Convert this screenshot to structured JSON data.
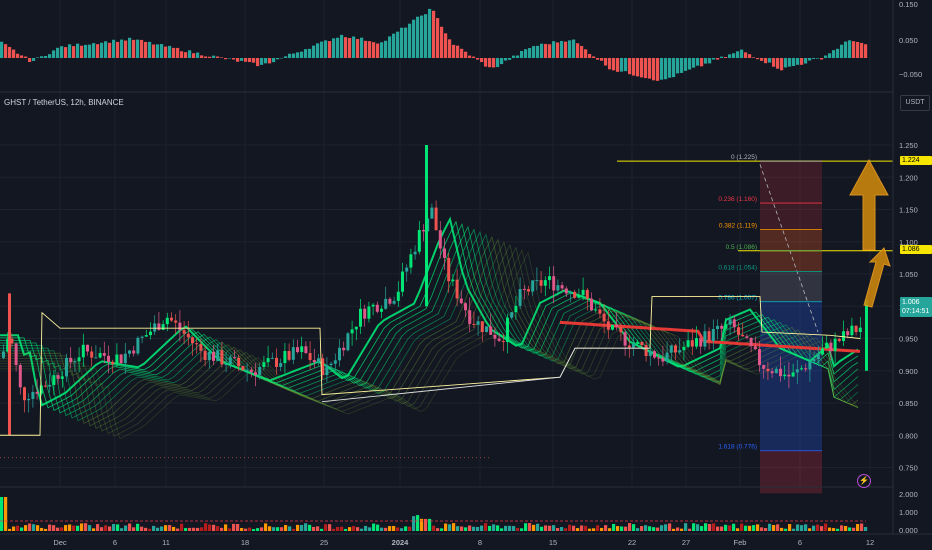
{
  "legend": {
    "text": "GHST / TetherUS, 12h, BINANCE"
  },
  "unit_badge": "USDT",
  "osc_ticks": [
    "0.150",
    "0.050",
    "−0.050"
  ],
  "price_ticks": [
    "1.250",
    "1.200",
    "1.150",
    "1.100",
    "1.050",
    "1.000",
    "0.950",
    "0.900",
    "0.850",
    "0.800",
    "0.750"
  ],
  "volume_ticks": [
    "2.000",
    "1.000",
    "0.000"
  ],
  "x_ticks": [
    "Dec",
    "6",
    "11",
    "18",
    "25",
    "2024",
    "8",
    "15",
    "22",
    "27",
    "Feb",
    "6",
    "12"
  ],
  "price_tags": {
    "tp1": "1.224",
    "tp2": "1.086",
    "current_price": "1.006",
    "countdown": "07:14:51"
  },
  "fib_levels": [
    {
      "label": "0 (1.225)",
      "value": 1.225,
      "color": "#b2b5be"
    },
    {
      "label": "0.236 (1.160)",
      "value": 1.16,
      "color": "#f23645"
    },
    {
      "label": "0.382 (1.119)",
      "value": 1.119,
      "color": "#ff9800"
    },
    {
      "label": "0.5 (1.086)",
      "value": 1.086,
      "color": "#4caf50"
    },
    {
      "label": "0.618 (1.054)",
      "value": 1.054,
      "color": "#089981"
    },
    {
      "label": "0.786 (1.007)",
      "value": 1.007,
      "color": "#00bcd4"
    },
    {
      "label": "1.618 (0.776)",
      "value": 0.776,
      "color": "#2962ff"
    }
  ],
  "colors": {
    "up": "#26a69a",
    "down": "#ef5350",
    "bright_up": "#00e676",
    "fib_line": "#f7e600",
    "arrow": "#c9850e"
  }
}
